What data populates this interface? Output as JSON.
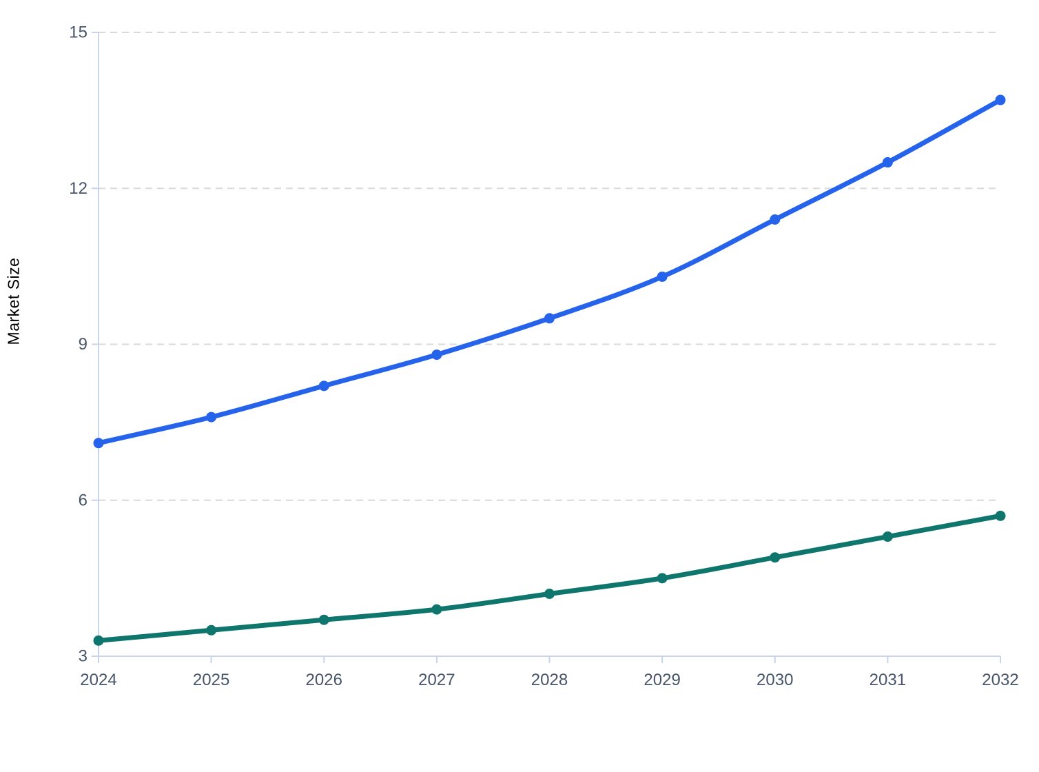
{
  "chart_data": {
    "type": "line",
    "title": "",
    "xlabel": "",
    "ylabel": "Market Size",
    "x": [
      2024,
      2025,
      2026,
      2027,
      2028,
      2029,
      2030,
      2031,
      2032
    ],
    "series": [
      {
        "color": "#2563eb",
        "values": [
          7.1,
          7.6,
          8.2,
          8.8,
          9.5,
          10.3,
          11.4,
          12.5,
          13.7
        ]
      },
      {
        "color": "#0f766e",
        "values": [
          3.3,
          3.5,
          3.7,
          3.9,
          4.2,
          4.5,
          4.9,
          5.3,
          5.7
        ]
      }
    ],
    "ylim": [
      3,
      15
    ],
    "yticks": [
      3,
      6,
      9,
      12,
      15
    ],
    "grid": "horizontal-dashed",
    "legend": "none",
    "style": {
      "axis_color": "#c9d3ee",
      "grid_color": "#d9d9d9",
      "tick_label_color": "#475569",
      "curve": "monotone"
    }
  }
}
